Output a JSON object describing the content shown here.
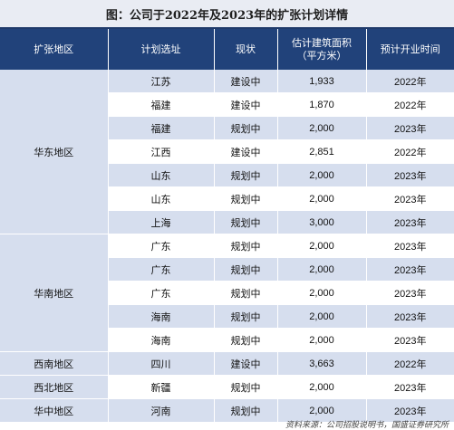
{
  "title": "图：公司于2022年及2023年的扩张计划详情",
  "headers": [
    "扩张地区",
    "计划选址",
    "现状",
    "估计建筑面积\n（平方米）",
    "预计开业时间"
  ],
  "regions": [
    {
      "name": "华东地区",
      "rows": [
        {
          "site": "江苏",
          "status": "建设中",
          "area": "1,933",
          "year": "2022年"
        },
        {
          "site": "福建",
          "status": "建设中",
          "area": "1,870",
          "year": "2022年"
        },
        {
          "site": "福建",
          "status": "规划中",
          "area": "2,000",
          "year": "2023年"
        },
        {
          "site": "江西",
          "status": "建设中",
          "area": "2,851",
          "year": "2022年"
        },
        {
          "site": "山东",
          "status": "规划中",
          "area": "2,000",
          "year": "2023年"
        },
        {
          "site": "山东",
          "status": "规划中",
          "area": "2,000",
          "year": "2023年"
        },
        {
          "site": "上海",
          "status": "规划中",
          "area": "3,000",
          "year": "2023年"
        }
      ]
    },
    {
      "name": "华南地区",
      "rows": [
        {
          "site": "广东",
          "status": "规划中",
          "area": "2,000",
          "year": "2023年"
        },
        {
          "site": "广东",
          "status": "规划中",
          "area": "2,000",
          "year": "2023年"
        },
        {
          "site": "广东",
          "status": "规划中",
          "area": "2,000",
          "year": "2023年"
        },
        {
          "site": "海南",
          "status": "规划中",
          "area": "2,000",
          "year": "2023年"
        },
        {
          "site": "海南",
          "status": "规划中",
          "area": "2,000",
          "year": "2023年"
        }
      ]
    },
    {
      "name": "西南地区",
      "rows": [
        {
          "site": "四川",
          "status": "建设中",
          "area": "3,663",
          "year": "2022年"
        }
      ]
    },
    {
      "name": "西北地区",
      "rows": [
        {
          "site": "新疆",
          "status": "规划中",
          "area": "2,000",
          "year": "2023年"
        }
      ]
    },
    {
      "name": "华中地区",
      "rows": [
        {
          "site": "河南",
          "status": "规划中",
          "area": "2,000",
          "year": "2023年"
        }
      ]
    }
  ],
  "source": "资料来源：公司招股说明书，国盛证券研究所"
}
